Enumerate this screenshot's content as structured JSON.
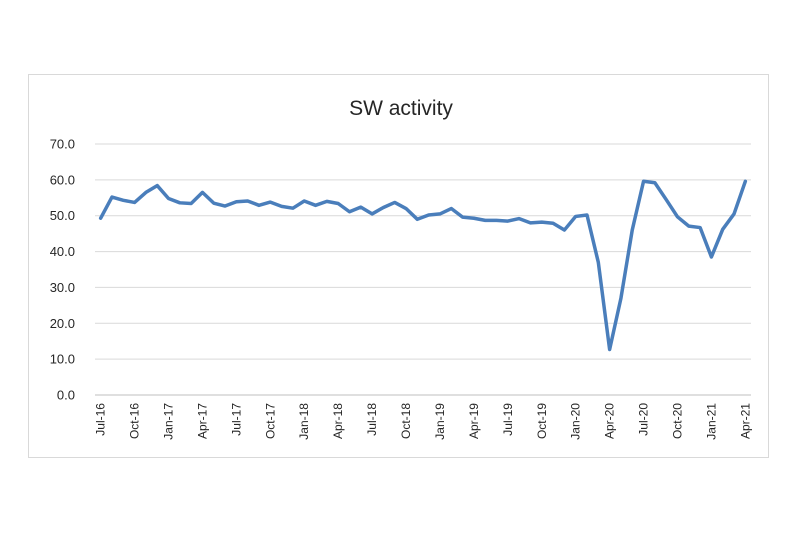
{
  "chart_data": {
    "type": "line",
    "title": "SW activity",
    "xlabel": "",
    "ylabel": "",
    "ylim": [
      0,
      70
    ],
    "yticks": [
      "0.0",
      "10.0",
      "20.0",
      "30.0",
      "40.0",
      "50.0",
      "60.0",
      "70.0"
    ],
    "grid": true,
    "legend": "none",
    "x": [
      "Jul-16",
      "Aug-16",
      "Sep-16",
      "Oct-16",
      "Nov-16",
      "Dec-16",
      "Jan-17",
      "Feb-17",
      "Mar-17",
      "Apr-17",
      "May-17",
      "Jun-17",
      "Jul-17",
      "Aug-17",
      "Sep-17",
      "Oct-17",
      "Nov-17",
      "Dec-17",
      "Jan-18",
      "Feb-18",
      "Mar-18",
      "Apr-18",
      "May-18",
      "Jun-18",
      "Jul-18",
      "Aug-18",
      "Sep-18",
      "Oct-18",
      "Nov-18",
      "Dec-18",
      "Jan-19",
      "Feb-19",
      "Mar-19",
      "Apr-19",
      "May-19",
      "Jun-19",
      "Jul-19",
      "Aug-19",
      "Sep-19",
      "Oct-19",
      "Nov-19",
      "Dec-19",
      "Jan-20",
      "Feb-20",
      "Mar-20",
      "Apr-20",
      "May-20",
      "Jun-20",
      "Jul-20",
      "Aug-20",
      "Sep-20",
      "Oct-20",
      "Nov-20",
      "Dec-20",
      "Jan-21",
      "Feb-21",
      "Mar-21",
      "Apr-21"
    ],
    "xticks": [
      "Jul-16",
      "Oct-16",
      "Jan-17",
      "Apr-17",
      "Jul-17",
      "Oct-17",
      "Jan-18",
      "Apr-18",
      "Jul-18",
      "Oct-18",
      "Jan-19",
      "Apr-19",
      "Jul-19",
      "Oct-19",
      "Jan-20",
      "Apr-20",
      "Jul-20",
      "Oct-20",
      "Jan-21",
      "Apr-21"
    ],
    "series": [
      {
        "values": [
          49.3,
          55.2,
          54.3,
          53.7,
          56.5,
          58.4,
          54.8,
          53.6,
          53.4,
          56.5,
          53.5,
          52.7,
          53.9,
          54.1,
          52.9,
          53.8,
          52.6,
          52.1,
          54.1,
          52.9,
          54.0,
          53.4,
          51.1,
          52.4,
          50.5,
          52.3,
          53.7,
          52.0,
          49.0,
          50.2,
          50.5,
          52.0,
          49.6,
          49.3,
          48.7,
          48.7,
          48.5,
          49.2,
          48.0,
          48.2,
          47.9,
          46.0,
          49.8,
          50.2,
          37.0,
          12.7,
          27.0,
          46.0,
          59.6,
          59.2,
          54.5,
          49.7,
          47.1,
          46.7,
          38.5,
          46.2,
          50.5,
          59.6
        ],
        "color": "#4a7ebb"
      }
    ]
  }
}
